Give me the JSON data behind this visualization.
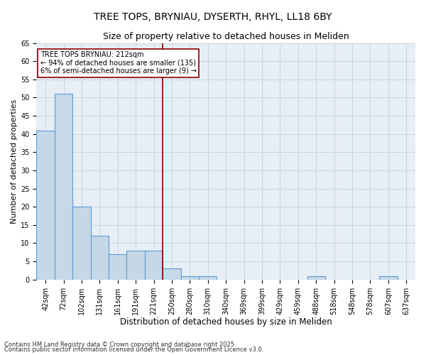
{
  "title": "TREE TOPS, BRYNIAU, DYSERTH, RHYL, LL18 6BY",
  "subtitle": "Size of property relative to detached houses in Meliden",
  "xlabel": "Distribution of detached houses by size in Meliden",
  "ylabel": "Number of detached properties",
  "categories": [
    "42sqm",
    "72sqm",
    "102sqm",
    "131sqm",
    "161sqm",
    "191sqm",
    "221sqm",
    "250sqm",
    "280sqm",
    "310sqm",
    "340sqm",
    "369sqm",
    "399sqm",
    "429sqm",
    "459sqm",
    "488sqm",
    "518sqm",
    "548sqm",
    "578sqm",
    "607sqm",
    "637sqm"
  ],
  "values": [
    41,
    51,
    20,
    12,
    7,
    8,
    8,
    3,
    1,
    1,
    0,
    0,
    0,
    0,
    0,
    1,
    0,
    0,
    0,
    1,
    0
  ],
  "bar_color": "#c5d8e8",
  "bar_edge_color": "#5b9bd5",
  "bar_linewidth": 0.8,
  "grid_color": "#c8d4e0",
  "bg_color": "#e8eef5",
  "red_line_index": 6,
  "annotation_title": "TREE TOPS BRYNIAU: 212sqm",
  "annotation_line1": "← 94% of detached houses are smaller (135)",
  "annotation_line2": "6% of semi-detached houses are larger (9) →",
  "footer_line1": "Contains HM Land Registry data © Crown copyright and database right 2025.",
  "footer_line2": "Contains public sector information licensed under the Open Government Licence v3.0.",
  "ylim": [
    0,
    65
  ],
  "yticks": [
    0,
    5,
    10,
    15,
    20,
    25,
    30,
    35,
    40,
    45,
    50,
    55,
    60,
    65
  ],
  "title_fontsize": 10,
  "subtitle_fontsize": 9,
  "ylabel_fontsize": 8,
  "xlabel_fontsize": 8.5,
  "tick_fontsize": 7,
  "annot_fontsize": 7,
  "footer_fontsize": 6
}
